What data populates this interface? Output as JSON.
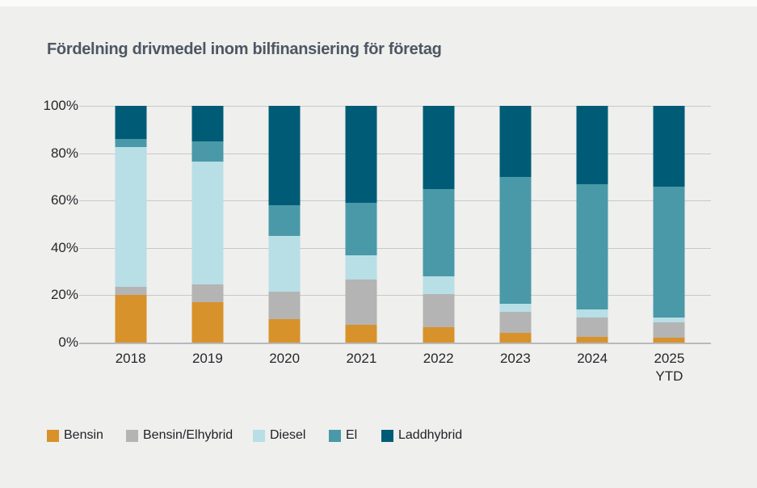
{
  "page": {
    "background": "#EFEFED"
  },
  "chart_data": {
    "type": "bar",
    "stacked": true,
    "unit": "%",
    "title": "Fördelning drivmedel inom bilfinansiering för företag",
    "title_color": "#4D5762",
    "categories": [
      {
        "label": "2018",
        "sublabel": ""
      },
      {
        "label": "2019",
        "sublabel": ""
      },
      {
        "label": "2020",
        "sublabel": ""
      },
      {
        "label": "2021",
        "sublabel": ""
      },
      {
        "label": "2022",
        "sublabel": ""
      },
      {
        "label": "2023",
        "sublabel": ""
      },
      {
        "label": "2024",
        "sublabel": ""
      },
      {
        "label": "2025",
        "sublabel": "YTD"
      }
    ],
    "series": [
      {
        "name": "Bensin",
        "color": "#D8922B",
        "values": [
          20,
          17,
          10,
          7.5,
          6.5,
          4,
          2.5,
          2
        ]
      },
      {
        "name": "Bensin/Elhybrid",
        "color": "#B4B4B4",
        "values": [
          3.5,
          7.5,
          11.5,
          19,
          14,
          9,
          8,
          6.5
        ]
      },
      {
        "name": "Diesel",
        "color": "#B8DEE6",
        "values": [
          59,
          52,
          23.5,
          10.5,
          7.5,
          3.5,
          3.5,
          2
        ]
      },
      {
        "name": "El",
        "color": "#4A99A8",
        "values": [
          3.5,
          8.5,
          13,
          22,
          37,
          53.5,
          53,
          55.5
        ]
      },
      {
        "name": "Laddhybrid",
        "color": "#005C76",
        "values": [
          14,
          15,
          42,
          41,
          35,
          30,
          33,
          34
        ]
      }
    ],
    "y_ticks": [
      {
        "value": 0,
        "label": "0%"
      },
      {
        "value": 20,
        "label": "20%"
      },
      {
        "value": 40,
        "label": "40%"
      },
      {
        "value": 60,
        "label": "60%"
      },
      {
        "value": 80,
        "label": "80%"
      },
      {
        "value": 100,
        "label": "100%"
      }
    ],
    "ylim": [
      0,
      100
    ],
    "grid": true,
    "legend_position": "bottom",
    "legend": [
      "Bensin",
      "Bensin/Elhybrid",
      "Diesel",
      "El",
      "Laddhybrid"
    ]
  }
}
